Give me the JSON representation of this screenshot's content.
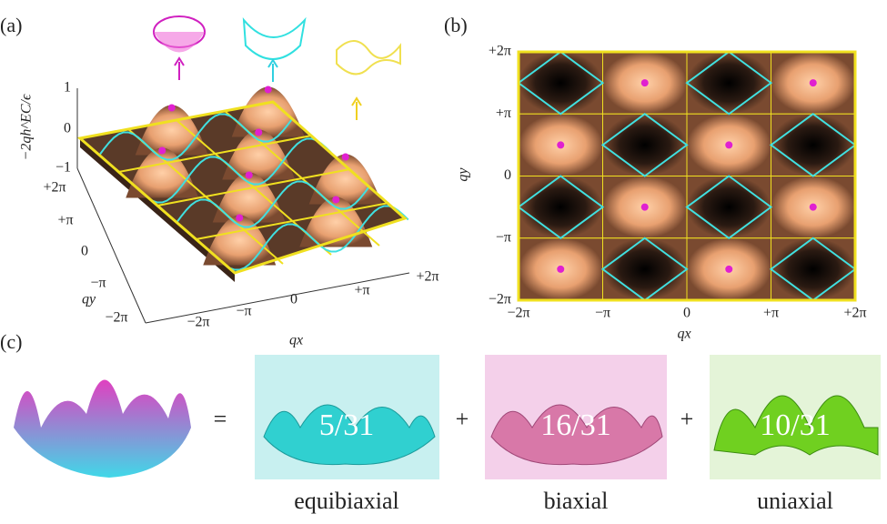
{
  "panel_a": {
    "label": "(a)",
    "z_label": "−2qh^EC/ϵ",
    "z_ticks": [
      "1",
      "0",
      "−1"
    ],
    "y_ticks": [
      "+2π",
      "+π",
      "0",
      "−π",
      "−2π"
    ],
    "x_ticks": [
      "−2π",
      "−π",
      "0",
      "+π",
      "+2π"
    ],
    "x_label": "qx",
    "y_label": "qy"
  },
  "panel_b": {
    "label": "(b)",
    "y_ticks": [
      "+2π",
      "+π",
      "0",
      "−π",
      "−2π"
    ],
    "x_ticks": [
      "−2π",
      "−π",
      "0",
      "+π",
      "+2π"
    ],
    "x_label": "qx",
    "y_label": "qy"
  },
  "panel_c": {
    "label": "(c)",
    "operators": [
      "=",
      "+",
      "+"
    ],
    "terms": [
      {
        "fraction": "5/31",
        "name": "equibiaxial"
      },
      {
        "fraction": "16/31",
        "name": "biaxial"
      },
      {
        "fraction": "10/31",
        "name": "uniaxial"
      }
    ]
  }
}
